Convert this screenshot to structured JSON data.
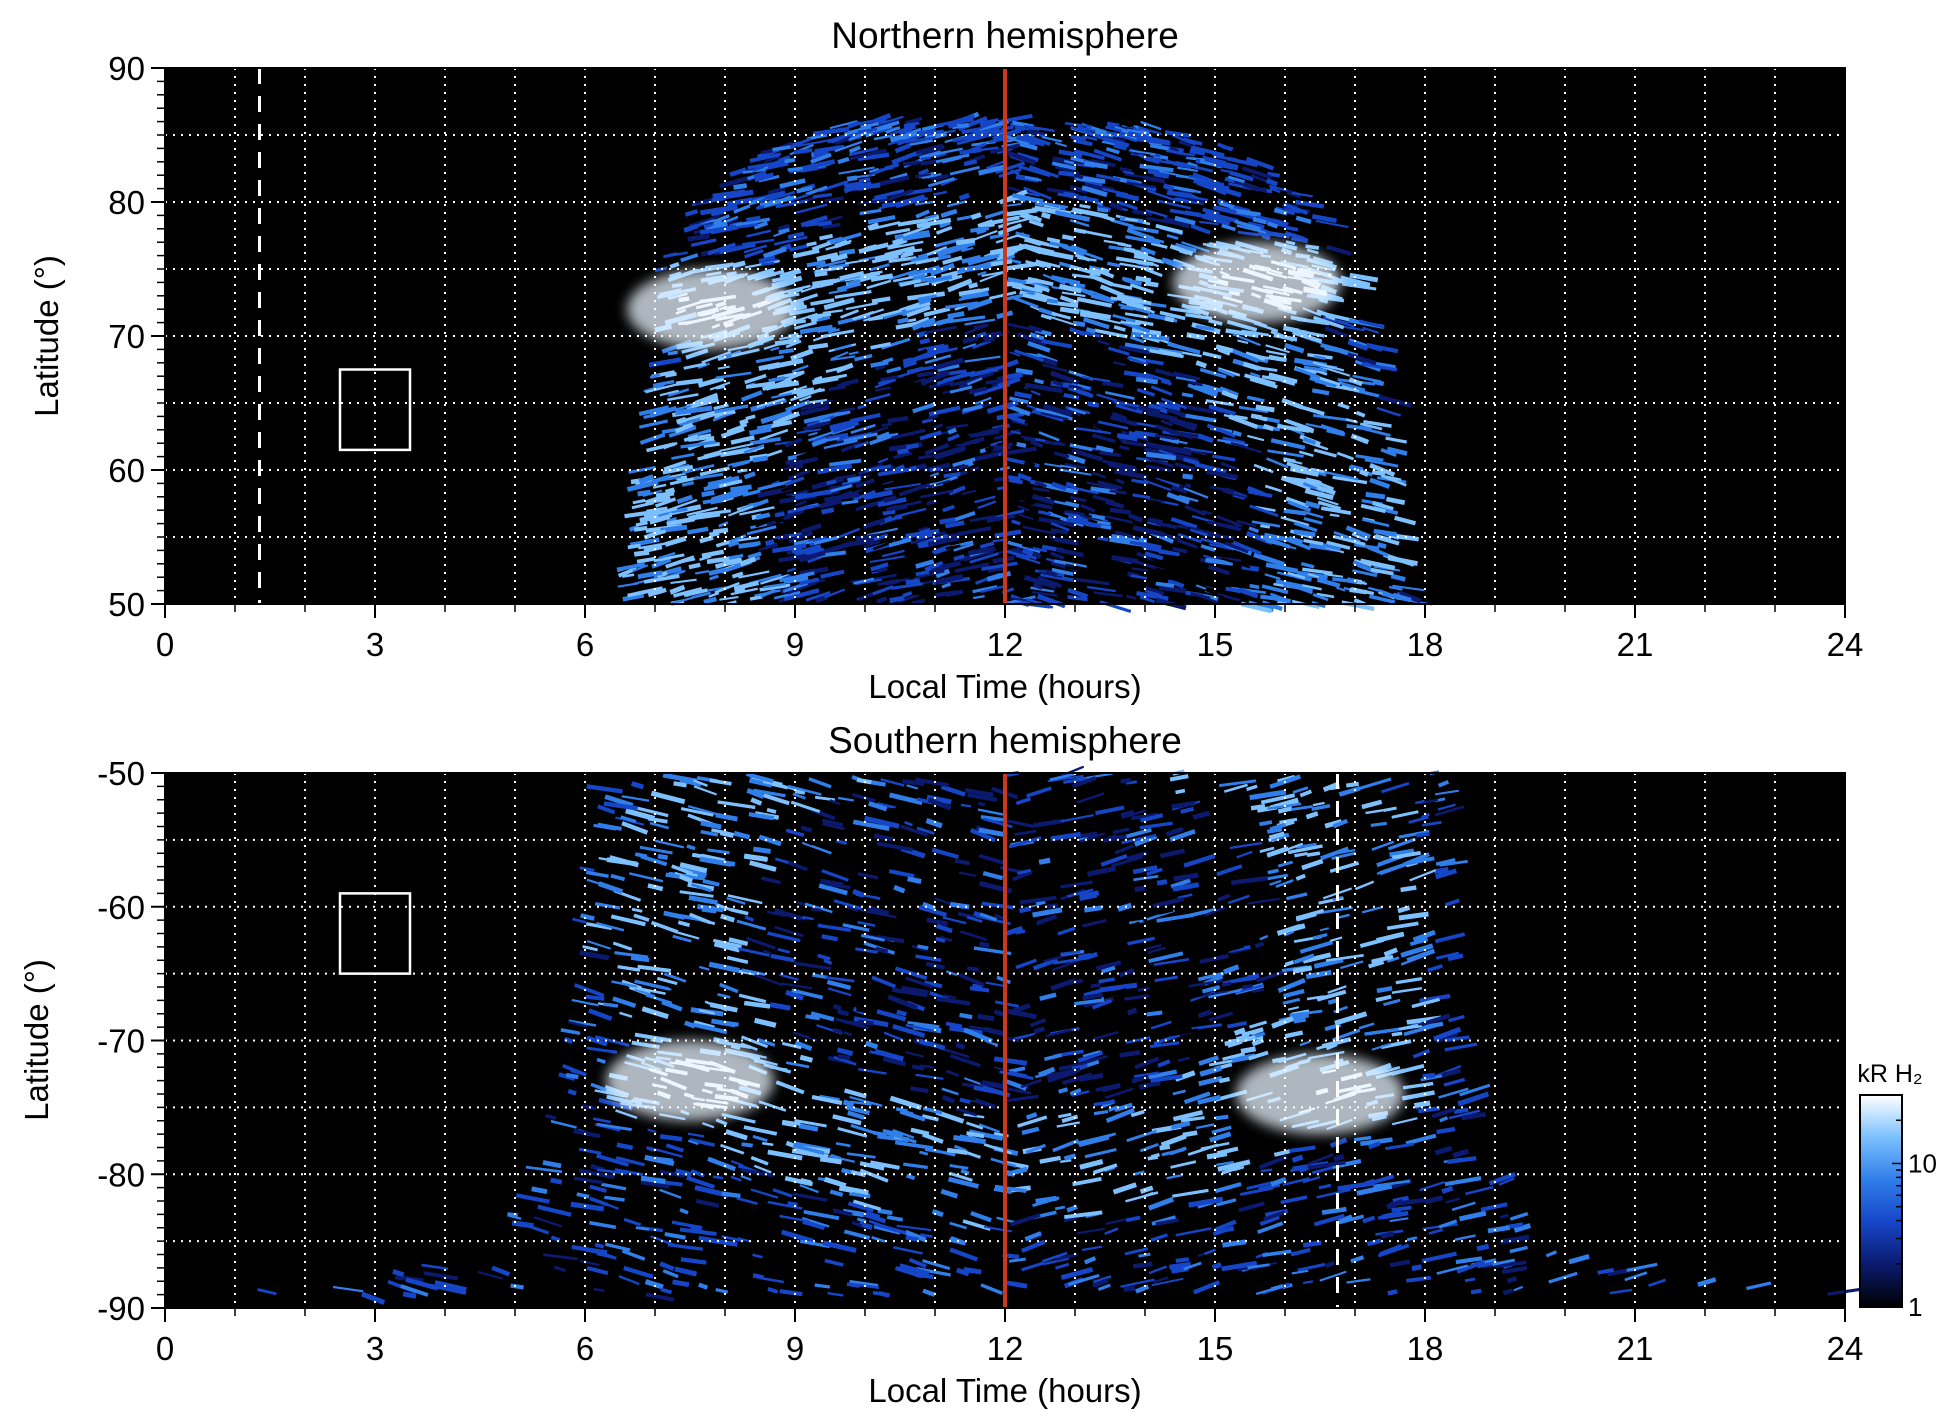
{
  "chart_data": [
    {
      "type": "heatmap",
      "title": "Northern hemisphere",
      "xlabel": "Local Time (hours)",
      "ylabel": "Latitude (°)",
      "xlim": [
        0,
        24
      ],
      "ylim": [
        50,
        90
      ],
      "x_ticks": [
        0,
        3,
        6,
        9,
        12,
        15,
        18,
        21,
        24
      ],
      "y_ticks": [
        50,
        60,
        70,
        80,
        90
      ],
      "grid": true,
      "emission_boundary": [
        {
          "lat": 50,
          "lt_start": 6.4,
          "lt_end": 17.7
        },
        {
          "lat": 55,
          "lt_start": 6.5,
          "lt_end": 17.6
        },
        {
          "lat": 60,
          "lt_start": 6.6,
          "lt_end": 17.5
        },
        {
          "lat": 65,
          "lt_start": 6.7,
          "lt_end": 17.4
        },
        {
          "lat": 70,
          "lt_start": 6.9,
          "lt_end": 17.2
        },
        {
          "lat": 75,
          "lt_start": 7.0,
          "lt_end": 16.9
        },
        {
          "lat": 80,
          "lt_start": 7.5,
          "lt_end": 16.3
        },
        {
          "lat": 84,
          "lt_start": 8.5,
          "lt_end": 15.3
        },
        {
          "lat": 86,
          "lt_start": 9.8,
          "lt_end": 14.2
        }
      ],
      "auroral_oval_center": {
        "lt": 12,
        "lat": 56,
        "lt_halfwidth": 4.2,
        "lat_halfwidth": 18
      },
      "brightest_regions": [
        {
          "lt": 7.8,
          "lat": 72,
          "level": "max"
        },
        {
          "lt": 15.6,
          "lat": 74,
          "level": "max"
        }
      ],
      "noon_line_lt": 12,
      "dashed_line_lt": 1.35,
      "box": {
        "lt_min": 2.5,
        "lt_max": 3.5,
        "lat_min": 61.5,
        "lat_max": 67.5
      }
    },
    {
      "type": "heatmap",
      "title": "Southern hemisphere",
      "xlabel": "Local Time (hours)",
      "ylabel": "Latitude (°)",
      "xlim": [
        0,
        24
      ],
      "ylim": [
        -90,
        -50
      ],
      "x_ticks": [
        0,
        3,
        6,
        9,
        12,
        15,
        18,
        21,
        24
      ],
      "y_ticks": [
        -90,
        -80,
        -70,
        -60,
        -50
      ],
      "grid": true,
      "emission_boundary": [
        {
          "lat": -50,
          "lt_start": 5.9,
          "lt_end": 18.2
        },
        {
          "lat": -60,
          "lt_start": 5.8,
          "lt_end": 18.3
        },
        {
          "lat": -70,
          "lt_start": 5.6,
          "lt_end": 18.4
        },
        {
          "lat": -75,
          "lt_start": 5.4,
          "lt_end": 18.6
        },
        {
          "lat": -80,
          "lt_start": 5.1,
          "lt_end": 19.0
        },
        {
          "lat": -84,
          "lt_start": 4.6,
          "lt_end": 19.4
        },
        {
          "lat": -86,
          "lt_start": 4.0,
          "lt_end": 20.0
        },
        {
          "lat": -88,
          "lt_start": 2.8,
          "lt_end": 21.5
        },
        {
          "lat": -89,
          "lt_start": 0,
          "lt_end": 24
        }
      ],
      "auroral_oval_center": {
        "lt": 12,
        "lat": -62,
        "lt_halfwidth": 4.5,
        "lat_halfwidth": 16
      },
      "brightest_regions": [
        {
          "lt": 7.5,
          "lat": -73,
          "level": "max"
        },
        {
          "lt": 16.5,
          "lat": -74,
          "level": "max"
        }
      ],
      "noon_line_lt": 12,
      "dashed_line_lt": 16.75,
      "box": {
        "lt_min": 2.5,
        "lt_max": 3.5,
        "lat_min": -65,
        "lat_max": -59
      }
    }
  ],
  "colorbar": {
    "label": "kR H₂",
    "tick_labels": [
      "1",
      "10"
    ],
    "tick_values": [
      1,
      10
    ],
    "range": [
      1,
      30
    ],
    "scale": "log",
    "colors": [
      "#000000",
      "#0b1a6e",
      "#1646c8",
      "#2f7eea",
      "#7cc0ff",
      "#ffffff"
    ]
  },
  "colors": {
    "background": "#000000",
    "grid": "#ffffff",
    "noon_line": "#c8391e",
    "dashed_line": "#ffffff",
    "box": "#ffffff"
  }
}
